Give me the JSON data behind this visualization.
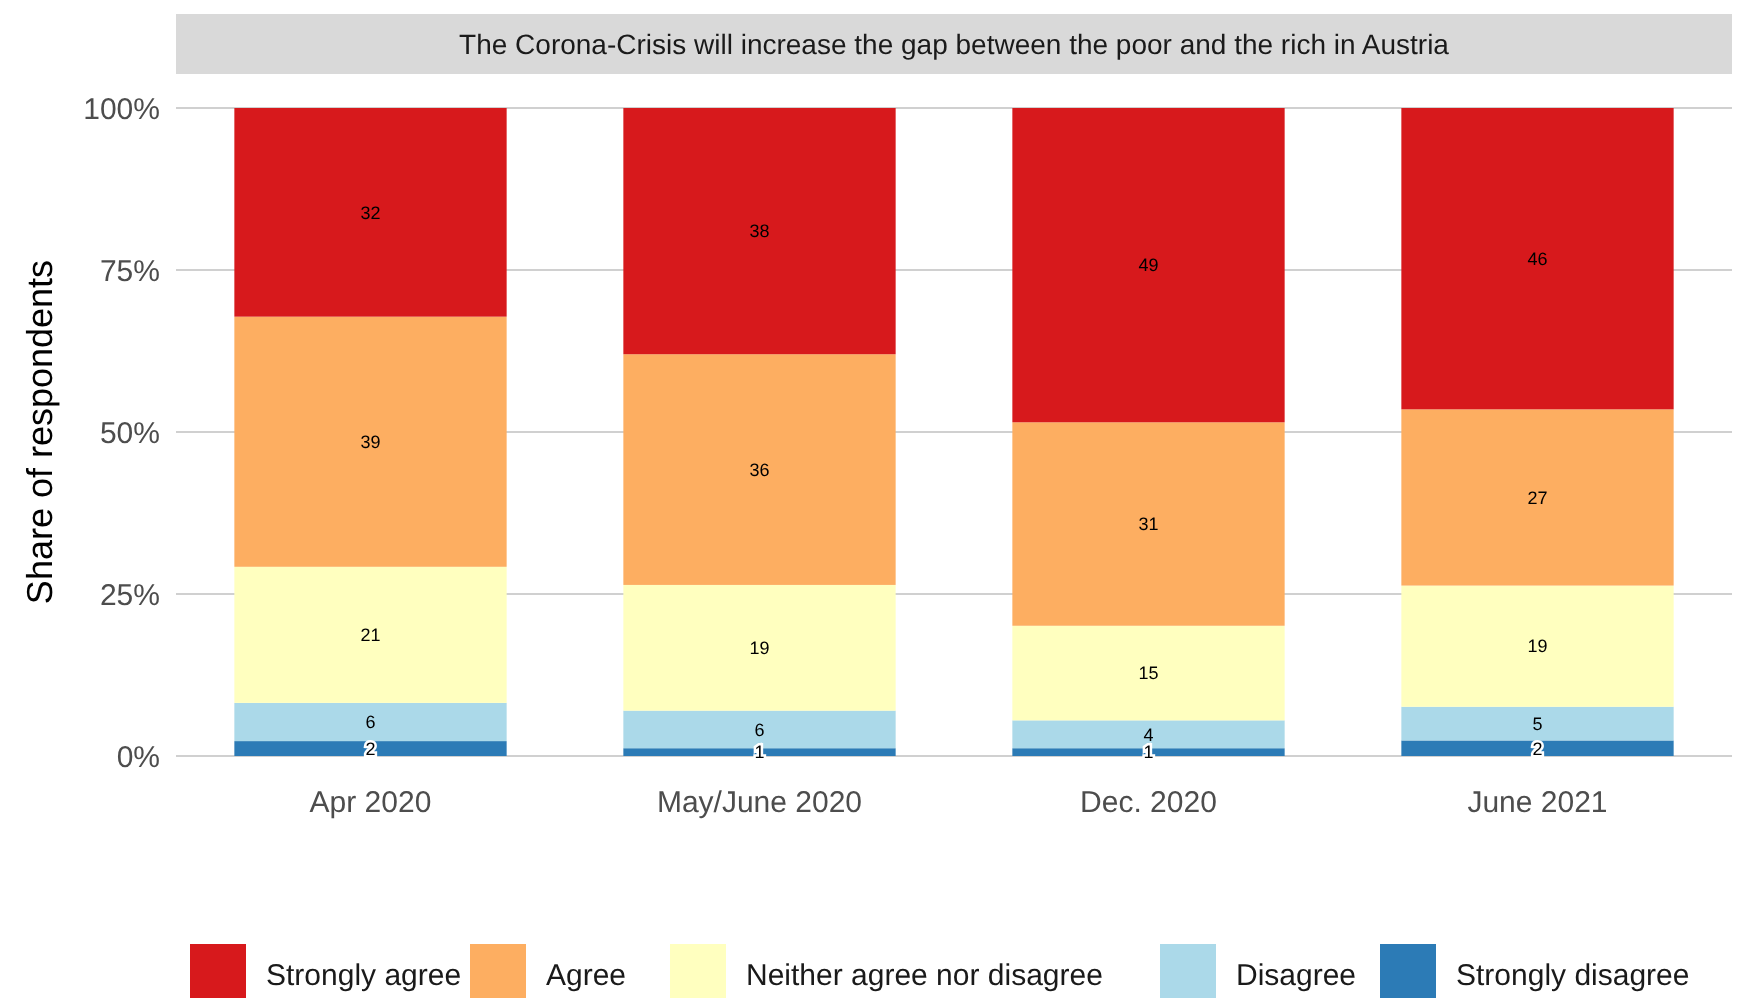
{
  "chart_data": {
    "type": "bar",
    "title": "The Corona-Crisis will increase the gap between the poor and the rich in Austria",
    "ylabel": "Share of respondents",
    "categories": [
      "Apr 2020",
      "May/June 2020",
      "Dec. 2020",
      "June 2021"
    ],
    "stacked": true,
    "ylim": [
      0,
      100
    ],
    "yticks": [
      {
        "value": 0,
        "label": "0%"
      },
      {
        "value": 25,
        "label": "25%"
      },
      {
        "value": 50,
        "label": "50%"
      },
      {
        "value": 75,
        "label": "75%"
      },
      {
        "value": 100,
        "label": "100%"
      }
    ],
    "grid": "y",
    "legend": "bottom",
    "series": [
      {
        "name": "Strongly disagree",
        "color": "#2c7bb6",
        "values": [
          2.3,
          1.2,
          1.2,
          2.4
        ],
        "value_labels": [
          "2",
          "1",
          "1",
          "2"
        ]
      },
      {
        "name": "Disagree",
        "color": "#abd9e9",
        "values": [
          5.9,
          5.8,
          4.3,
          5.2
        ],
        "value_labels": [
          "6",
          "6",
          "4",
          "5"
        ]
      },
      {
        "name": "Neither agree nor disagree",
        "color": "#ffffbf",
        "values": [
          21.0,
          19.4,
          14.6,
          18.7
        ],
        "value_labels": [
          "21",
          "19",
          "15",
          "19"
        ]
      },
      {
        "name": "Agree",
        "color": "#fdae61",
        "values": [
          38.6,
          35.6,
          31.4,
          27.2
        ],
        "value_labels": [
          "39",
          "36",
          "31",
          "27"
        ]
      },
      {
        "name": "Strongly agree",
        "color": "#d7191c",
        "values": [
          32.2,
          38.0,
          48.5,
          46.5
        ],
        "value_labels": [
          "32",
          "38",
          "49",
          "46"
        ]
      }
    ]
  }
}
